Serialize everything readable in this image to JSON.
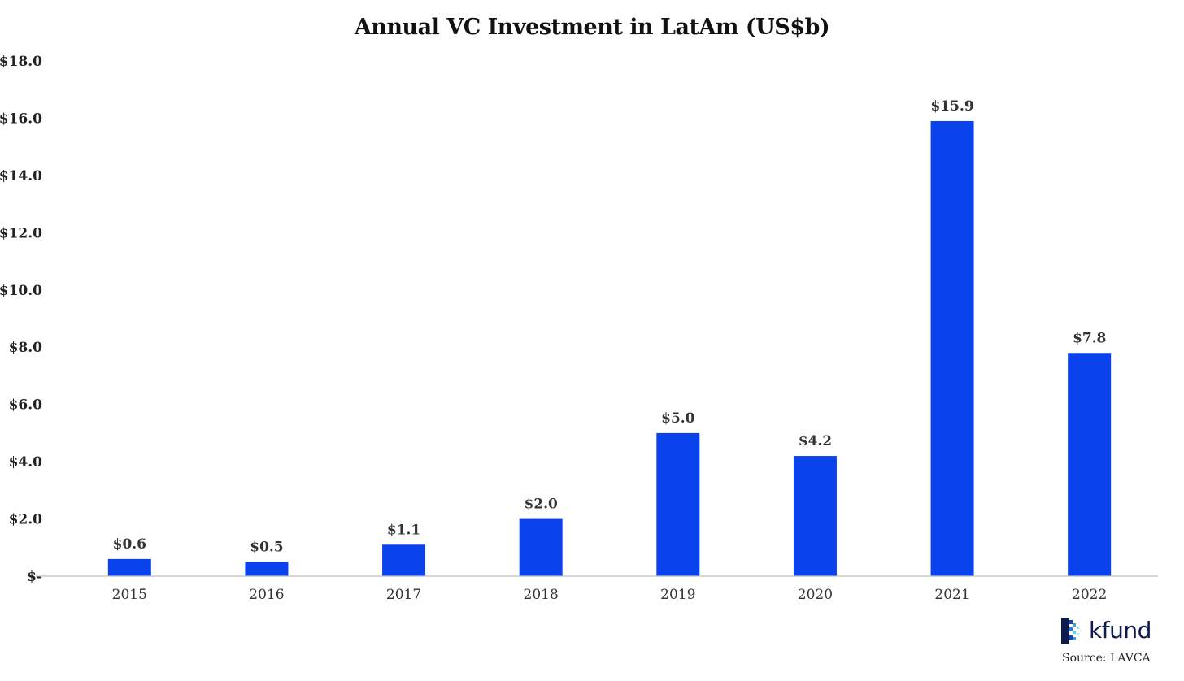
{
  "chart_data": {
    "type": "bar",
    "title": "Annual VC Investment in LatAm (US$b)",
    "xlabel": "",
    "ylabel": "",
    "categories": [
      "2015",
      "2016",
      "2017",
      "2018",
      "2019",
      "2020",
      "2021",
      "2022"
    ],
    "values": [
      0.6,
      0.5,
      1.1,
      2.0,
      5.0,
      4.2,
      15.9,
      7.8
    ],
    "data_labels": [
      "$0.6",
      "$0.5",
      "$1.1",
      "$2.0",
      "$5.0",
      "$4.2",
      "$15.9",
      "$7.8"
    ],
    "ylim": [
      0,
      18
    ],
    "y_ticks": [
      0,
      2,
      4,
      6,
      8,
      10,
      12,
      14,
      16,
      18
    ],
    "y_tick_labels": [
      "$-",
      "$2.0",
      "$4.0",
      "$6.0",
      "$8.0",
      "$10.0",
      "$12.0",
      "$14.0",
      "$16.0",
      "$18.0"
    ],
    "grid": false,
    "legend": "none",
    "colors": {
      "bar": "#0a42ec",
      "axis": "#bfbfbf"
    }
  },
  "branding": {
    "logo_text": "kfund",
    "logo_icon": "kfund-pixel-mark-icon",
    "source": "Source: LAVCA"
  }
}
